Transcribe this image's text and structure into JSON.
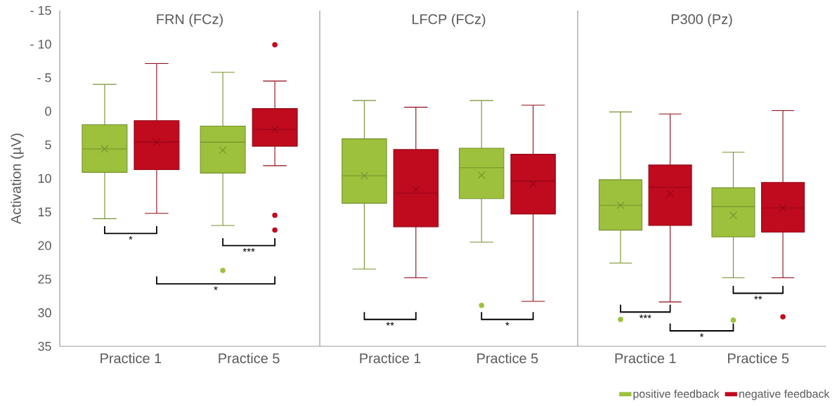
{
  "chart_data": [
    {
      "type": "box",
      "title": "FRN (FCz)",
      "ylabel": "Activation (µV)",
      "categories": [
        "Practice 1",
        "Practice 5"
      ],
      "series": [
        {
          "color": "#9dc13c",
          "boxes": [
            {
              "low": -4.0,
              "q1": 2.0,
              "median": 5.6,
              "q3": 9.1,
              "high": 16.0,
              "mean": 5.6
            },
            {
              "low": -5.8,
              "q1": 2.2,
              "median": 4.6,
              "q3": 9.2,
              "high": 17.0,
              "mean": 5.8,
              "outliers": [
                23.7
              ]
            }
          ]
        },
        {
          "color": "#c00a1e",
          "boxes": [
            {
              "low": -7.1,
              "q1": 1.4,
              "median": 4.6,
              "q3": 8.7,
              "high": 15.2,
              "mean": 4.6
            },
            {
              "low": -4.5,
              "q1": -0.4,
              "median": 2.7,
              "q3": 5.2,
              "high": 8.1,
              "mean": 2.7,
              "outliers": [
                -9.9,
                15.5,
                17.7
              ]
            }
          ]
        }
      ],
      "ylim": [
        35,
        -15
      ],
      "yticks": [
        {
          "value": -15,
          "label": "- 15"
        },
        {
          "value": -10,
          "label": "- 10"
        },
        {
          "value": -5,
          "label": "- 5"
        },
        0,
        5,
        10,
        15,
        20,
        25,
        30,
        35
      ],
      "annotations": [
        "*",
        "***",
        "*"
      ]
    },
    {
      "type": "box",
      "title": "LFCP (FCz)",
      "categories": [
        "Practice 1",
        "Practice 5"
      ],
      "series": [
        {
          "color": "#9dc13c",
          "boxes": [
            {
              "low": -1.6,
              "q1": 4.1,
              "median": 9.6,
              "q3": 13.7,
              "high": 23.5,
              "mean": 9.6
            },
            {
              "low": -1.6,
              "q1": 5.5,
              "median": 8.4,
              "q3": 13.0,
              "high": 19.5,
              "mean": 9.5,
              "outliers": [
                28.9
              ]
            }
          ]
        },
        {
          "color": "#c00a1e",
          "boxes": [
            {
              "low": -0.6,
              "q1": 5.7,
              "median": 12.2,
              "q3": 17.2,
              "high": 24.8,
              "mean": 11.7
            },
            {
              "low": -0.9,
              "q1": 6.4,
              "median": 10.4,
              "q3": 15.3,
              "high": 28.3,
              "mean": 10.8
            }
          ]
        }
      ],
      "ylim": [
        35,
        -15
      ],
      "tick_labels": "x",
      "annotations": [
        "**",
        "*"
      ]
    },
    {
      "type": "box",
      "title": "P300 (Pz)",
      "categories": [
        "Practice 1",
        "Practice 5"
      ],
      "series": [
        {
          "name": "positive feedback",
          "color": "#9dc13c",
          "boxes": [
            {
              "low": 0.1,
              "q1": 10.2,
              "median": 14.0,
              "q3": 17.7,
              "high": 22.6,
              "mean": 14.0,
              "outliers": [
                31.0
              ]
            },
            {
              "low": 6.1,
              "q1": 11.4,
              "median": 14.2,
              "q3": 18.7,
              "high": 24.8,
              "mean": 15.5,
              "outliers": [
                31.1
              ]
            }
          ]
        },
        {
          "name": "negative feedback",
          "color": "#c00a1e",
          "boxes": [
            {
              "low": 0.4,
              "q1": 8.0,
              "median": 11.3,
              "q3": 17.0,
              "high": 28.4,
              "mean": 12.3
            },
            {
              "low": -0.1,
              "q1": 10.6,
              "median": 14.4,
              "q3": 18.0,
              "high": 24.8,
              "mean": 14.4,
              "outliers": [
                30.6
              ]
            }
          ]
        }
      ],
      "ylim": [
        35,
        -15
      ],
      "tick_labels": "x",
      "legend": "bottom right",
      "annotations": [
        "***",
        "**",
        "*"
      ]
    }
  ]
}
